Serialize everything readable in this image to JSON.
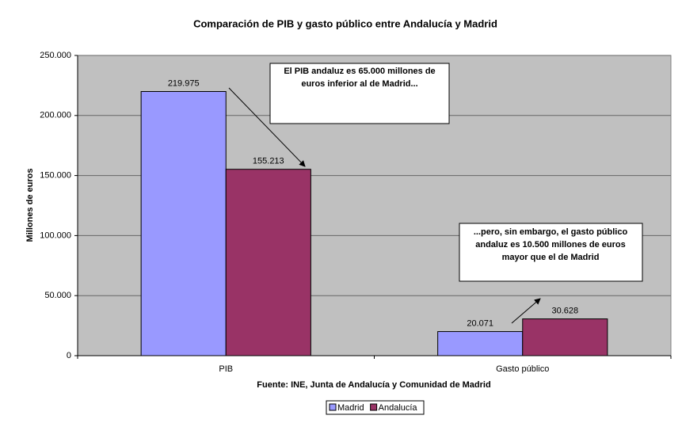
{
  "chart_data": {
    "type": "bar",
    "title": "Comparación de PIB y gasto público entre Andalucía y Madrid",
    "xlabel": "Fuente: INE, Junta de Andalucía y Comunidad de Madrid",
    "ylabel": "Millones de euros",
    "categories": [
      "PIB",
      "Gasto público"
    ],
    "series": [
      {
        "name": "Madrid",
        "color": "#9999ff",
        "values": [
          219975,
          20071
        ],
        "value_labels": [
          "219.975",
          "20.071"
        ]
      },
      {
        "name": "Andalucía",
        "color": "#993366",
        "values": [
          155213,
          30628
        ],
        "value_labels": [
          "155.213",
          "30.628"
        ]
      }
    ],
    "ylim": [
      0,
      250000
    ],
    "yticks": [
      {
        "value": 0,
        "label": "0"
      },
      {
        "value": 50000,
        "label": "50.000"
      },
      {
        "value": 100000,
        "label": "100.000"
      },
      {
        "value": 150000,
        "label": "150.000"
      },
      {
        "value": 200000,
        "label": "200.000"
      },
      {
        "value": 250000,
        "label": "250.000"
      }
    ],
    "grid": true,
    "legend": "bottom",
    "annotations": [
      {
        "lines": [
          "El PIB andaluz es 65.000 millones de",
          "euros inferior al de Madrid..."
        ]
      },
      {
        "lines": [
          "...pero, sin embargo, el gasto público",
          "andaluz es 10.500 millones de euros",
          "mayor que el de Madrid"
        ]
      }
    ]
  }
}
